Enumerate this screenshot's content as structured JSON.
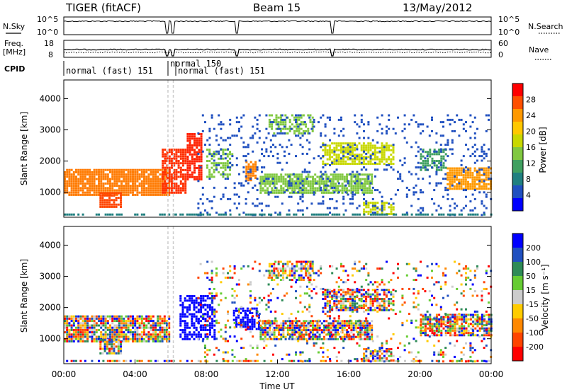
{
  "header": {
    "radar": "TIGER (fitACF)",
    "beam": "Beam 15",
    "date": "13/May/2012"
  },
  "status_panels": {
    "nsky": {
      "left_label": "N.Sky",
      "right_label": "N.Search",
      "left_ticks": [
        "10^5",
        "10^0"
      ],
      "right_ticks": [
        "10^5",
        "10^0"
      ]
    },
    "freq": {
      "left_label_1": "Freq.",
      "left_label_2": "[MHz]",
      "right_label": "Nave",
      "left_ticks": [
        "18",
        "8"
      ],
      "right_ticks": [
        "60",
        "0"
      ]
    },
    "cpid": {
      "label": "CPID",
      "segments": [
        {
          "label": "normal (fast) 151",
          "start_hour": 0.0
        },
        {
          "label": "normal 150",
          "start_hour": 5.75
        },
        {
          "label": "normal (fast) 151",
          "start_hour": 6.2
        }
      ]
    }
  },
  "chart_data": [
    {
      "type": "heatmap",
      "name": "power",
      "ylabel": "Slant Range [km]",
      "xlabel": "",
      "ylim": [
        200,
        4600
      ],
      "xlim_hours": [
        0,
        24
      ],
      "colorbar": {
        "label": "Power [dB]",
        "ticks": [
          "28",
          "24",
          "20",
          "16",
          "12",
          "8",
          "4"
        ],
        "colors": [
          "#ff0000",
          "#ff5000",
          "#ff9900",
          "#ffc800",
          "#c8d800",
          "#80c840",
          "#40a060",
          "#208080",
          "#2050c0",
          "#0000ff"
        ]
      },
      "y_ticks": [
        "1000",
        "2000",
        "3000",
        "4000"
      ],
      "bands": [
        {
          "t0": 0.0,
          "t1": 5.9,
          "r0": 950,
          "r1": 1750,
          "color": "#ff7a00",
          "density": 0.9
        },
        {
          "t0": 2.0,
          "t1": 3.2,
          "r0": 500,
          "r1": 1000,
          "color": "#ff4500",
          "density": 0.8
        },
        {
          "t0": 5.5,
          "t1": 6.9,
          "r0": 1000,
          "r1": 2400,
          "color": "#ff3000",
          "density": 0.8
        },
        {
          "t0": 6.9,
          "t1": 7.7,
          "r0": 1400,
          "r1": 2900,
          "color": "#ff2000",
          "density": 0.8
        },
        {
          "t0": 8.0,
          "t1": 9.5,
          "r0": 1500,
          "r1": 2400,
          "color": "#80c840",
          "density": 0.5
        },
        {
          "t0": 10.2,
          "t1": 10.8,
          "r0": 1400,
          "r1": 2000,
          "color": "#ff8000",
          "density": 0.7
        },
        {
          "t0": 11.0,
          "t1": 17.3,
          "r0": 1000,
          "r1": 1600,
          "color": "#80c840",
          "density": 0.85
        },
        {
          "t0": 11.5,
          "t1": 14.0,
          "r0": 2900,
          "r1": 3500,
          "color": "#80c840",
          "density": 0.6
        },
        {
          "t0": 14.5,
          "t1": 18.5,
          "r0": 1900,
          "r1": 2600,
          "color": "#c8d800",
          "density": 0.7
        },
        {
          "t0": 16.8,
          "t1": 18.5,
          "r0": 300,
          "r1": 700,
          "color": "#c8d800",
          "density": 0.6
        },
        {
          "t0": 21.5,
          "t1": 24.0,
          "r0": 1100,
          "r1": 1800,
          "color": "#ff9900",
          "density": 0.85
        },
        {
          "t0": 20.0,
          "t1": 21.5,
          "r0": 1700,
          "r1": 2400,
          "color": "#40a060",
          "density": 0.6
        },
        {
          "t0": 7.5,
          "t1": 24.0,
          "r0": 250,
          "r1": 3500,
          "color": "#2050c0",
          "density": 0.12
        },
        {
          "t0": 0.0,
          "t1": 24.0,
          "r0": 250,
          "r1": 320,
          "color": "#208080",
          "density": 0.6
        }
      ]
    },
    {
      "type": "heatmap",
      "name": "velocity",
      "ylabel": "Slant Range [km]",
      "xlabel": "Time UT",
      "ylim": [
        200,
        4600
      ],
      "xlim_hours": [
        0,
        24
      ],
      "colorbar": {
        "label": "Velocity [m s⁻¹]",
        "ticks": [
          "200",
          "100",
          "50",
          "15",
          "-15",
          "-50",
          "-100",
          "-200"
        ],
        "colors": [
          "#0000ff",
          "#2050c0",
          "#2e8b57",
          "#66cc33",
          "#cccccc",
          "#ffcc00",
          "#ff8800",
          "#ff4400",
          "#ff0000"
        ]
      },
      "y_ticks": [
        "1000",
        "2000",
        "3000",
        "4000"
      ],
      "x_ticks": [
        "00:00",
        "04:00",
        "08:00",
        "12:00",
        "16:00",
        "20:00",
        "00:00"
      ],
      "bands": [
        {
          "t0": 0.0,
          "t1": 5.9,
          "r0": 950,
          "r1": 1750,
          "color": "mix",
          "density": 0.85
        },
        {
          "t0": 2.0,
          "t1": 3.2,
          "r0": 500,
          "r1": 1000,
          "color": "mix",
          "density": 0.7
        },
        {
          "t0": 6.5,
          "t1": 8.5,
          "r0": 1000,
          "r1": 2400,
          "color": "#0000ff",
          "density": 0.6
        },
        {
          "t0": 9.5,
          "t1": 11.0,
          "r0": 1300,
          "r1": 2000,
          "color": "#0000ff",
          "density": 0.6
        },
        {
          "t0": 11.0,
          "t1": 17.3,
          "r0": 1000,
          "r1": 1600,
          "color": "mix",
          "density": 0.8
        },
        {
          "t0": 11.5,
          "t1": 14.0,
          "r0": 2900,
          "r1": 3500,
          "color": "mix",
          "density": 0.6
        },
        {
          "t0": 14.5,
          "t1": 18.5,
          "r0": 1900,
          "r1": 2600,
          "color": "mix",
          "density": 0.7
        },
        {
          "t0": 16.8,
          "t1": 18.5,
          "r0": 300,
          "r1": 700,
          "color": "mix",
          "density": 0.6
        },
        {
          "t0": 20.0,
          "t1": 24.0,
          "r0": 1100,
          "r1": 1800,
          "color": "mix",
          "density": 0.8
        },
        {
          "t0": 7.5,
          "t1": 24.0,
          "r0": 250,
          "r1": 3500,
          "color": "mix",
          "density": 0.12
        },
        {
          "t0": 0.0,
          "t1": 24.0,
          "r0": 250,
          "r1": 320,
          "color": "mix",
          "density": 0.5
        }
      ]
    }
  ]
}
